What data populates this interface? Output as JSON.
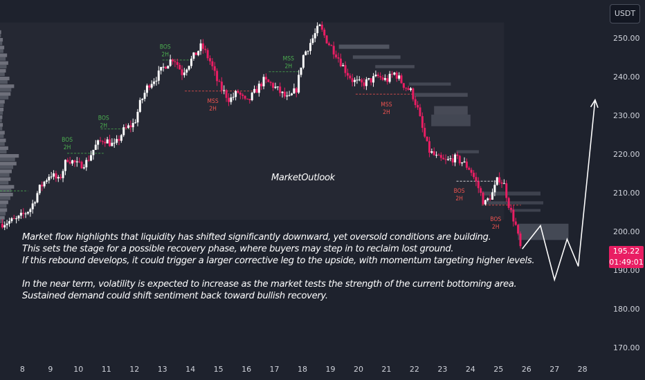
{
  "header": {
    "currency": "USDT"
  },
  "price_tag": {
    "last_price": "195.22",
    "countdown": "01:49:01"
  },
  "watermark": "MarketOutlook",
  "commentary": [
    "Market flow highlights that liquidity has shifted significantly downward, yet oversold conditions are building.",
    "This sets the stage for a possible recovery phase, where buyers may step in to reclaim lost ground.",
    "If this rebound develops, it could trigger a larger corrective leg to the upside, with momentum targeting higher levels.",
    "",
    "In the near term, volatility is expected to increase as the market tests the strength of the current bottoming area.",
    "Sustained demand could shift sentiment back toward bullish recovery."
  ],
  "colors": {
    "background": "#1e222d",
    "bull": "#ffffff",
    "bear": "#e91e63",
    "bos_label": "#4caf50",
    "mss_label": "#ef5350",
    "price_tag": "#e91e63"
  },
  "chart_data": {
    "type": "candlestick",
    "ylim": [
      165,
      255
    ],
    "yticks": [
      170,
      180,
      190,
      200,
      210,
      220,
      230,
      240,
      250
    ],
    "ytick_labels": [
      "170.00",
      "180.00",
      "190.00",
      "200.00",
      "210.00",
      "220.00",
      "230.00",
      "240.00",
      "250.00"
    ],
    "xlim": [
      7.2,
      28.7
    ],
    "xticks": [
      8,
      9,
      10,
      11,
      12,
      13,
      14,
      15,
      16,
      17,
      18,
      19,
      20,
      21,
      22,
      23,
      24,
      25,
      26,
      27,
      28
    ],
    "xtick_labels": [
      "8",
      "9",
      "10",
      "11",
      "12",
      "13",
      "14",
      "15",
      "16",
      "17",
      "18",
      "19",
      "20",
      "21",
      "22",
      "23",
      "24",
      "25",
      "26",
      "27",
      "28"
    ],
    "last_price": 195.22,
    "price_path": [
      [
        7.2,
        202
      ],
      [
        7.8,
        203
      ],
      [
        8.3,
        206
      ],
      [
        8.6,
        211
      ],
      [
        9.0,
        215
      ],
      [
        9.3,
        213
      ],
      [
        9.6,
        219
      ],
      [
        10.0,
        217
      ],
      [
        10.3,
        218
      ],
      [
        10.6,
        222
      ],
      [
        10.9,
        224
      ],
      [
        11.3,
        222
      ],
      [
        11.6,
        226
      ],
      [
        12.0,
        228
      ],
      [
        12.2,
        233
      ],
      [
        12.5,
        238
      ],
      [
        12.8,
        240
      ],
      [
        13.1,
        243
      ],
      [
        13.4,
        245
      ],
      [
        13.7,
        241
      ],
      [
        14.0,
        244
      ],
      [
        14.4,
        248
      ],
      [
        14.7,
        244
      ],
      [
        15.0,
        238
      ],
      [
        15.4,
        234
      ],
      [
        15.7,
        236
      ],
      [
        16.0,
        233
      ],
      [
        16.3,
        236
      ],
      [
        16.6,
        239
      ],
      [
        16.9,
        238
      ],
      [
        17.2,
        236
      ],
      [
        17.5,
        234
      ],
      [
        17.8,
        237
      ],
      [
        18.0,
        245
      ],
      [
        18.3,
        249
      ],
      [
        18.6,
        253
      ],
      [
        18.9,
        249
      ],
      [
        19.2,
        246
      ],
      [
        19.5,
        242
      ],
      [
        19.8,
        239
      ],
      [
        20.1,
        238
      ],
      [
        20.4,
        239
      ],
      [
        20.7,
        240
      ],
      [
        21.0,
        239
      ],
      [
        21.3,
        241
      ],
      [
        21.6,
        238
      ],
      [
        21.9,
        236
      ],
      [
        22.1,
        232
      ],
      [
        22.3,
        226
      ],
      [
        22.5,
        221
      ],
      [
        22.8,
        219
      ],
      [
        23.1,
        218
      ],
      [
        23.4,
        219
      ],
      [
        23.7,
        218
      ],
      [
        24.0,
        216
      ],
      [
        24.3,
        211
      ],
      [
        24.5,
        207
      ],
      [
        24.8,
        210
      ],
      [
        25.0,
        214
      ],
      [
        25.2,
        212
      ],
      [
        25.4,
        206
      ],
      [
        25.6,
        202
      ],
      [
        25.8,
        195.22
      ]
    ],
    "zones": [
      {
        "x": [
          7.2,
          25.2
        ],
        "y": [
          203,
          254
        ],
        "color": "rgba(255,255,255,0.03)"
      },
      {
        "x": [
          19.3,
          21.1
        ],
        "y": [
          247.2,
          248.3
        ],
        "color": "rgba(160,165,180,0.35)"
      },
      {
        "x": [
          19.8,
          21.5
        ],
        "y": [
          244.6,
          245.5
        ],
        "color": "rgba(160,165,180,0.3)"
      },
      {
        "x": [
          20.6,
          22.0
        ],
        "y": [
          242.2,
          243.0
        ],
        "color": "rgba(160,165,180,0.28)"
      },
      {
        "x": [
          21.8,
          23.3
        ],
        "y": [
          237.7,
          238.5
        ],
        "color": "rgba(160,165,180,0.25)"
      },
      {
        "x": [
          22.0,
          23.9
        ],
        "y": [
          234.8,
          235.8
        ],
        "color": "rgba(160,165,180,0.28)"
      },
      {
        "x": [
          22.7,
          23.9
        ],
        "y": [
          230.2,
          232.4
        ],
        "color": "rgba(160,165,180,0.28)"
      },
      {
        "x": [
          22.6,
          24.0
        ],
        "y": [
          227.2,
          230.2
        ],
        "color": "rgba(160,165,180,0.25)"
      },
      {
        "x": [
          23.5,
          24.3
        ],
        "y": [
          220.2,
          221.0
        ],
        "color": "rgba(160,165,180,0.25)"
      },
      {
        "x": [
          24.4,
          26.5
        ],
        "y": [
          209.3,
          210.3
        ],
        "color": "rgba(160,165,180,0.25)"
      },
      {
        "x": [
          24.6,
          26.6
        ],
        "y": [
          207.0,
          207.8
        ],
        "color": "rgba(160,165,180,0.25)"
      },
      {
        "x": [
          25.4,
          26.5
        ],
        "y": [
          205.1,
          205.8
        ],
        "color": "rgba(160,165,180,0.25)"
      },
      {
        "x": [
          25.7,
          27.5
        ],
        "y": [
          197.8,
          202.0
        ],
        "color": "rgba(160,165,180,0.3)"
      }
    ],
    "levels": [
      {
        "x": [
          7.2,
          8.2
        ],
        "y": 210.5,
        "color": "#4caf50"
      },
      {
        "x": [
          9.6,
          10.9
        ],
        "y": 220.2,
        "color": "#4caf50"
      },
      {
        "x": [
          10.8,
          12.0
        ],
        "y": 226.5,
        "color": "#4caf50"
      },
      {
        "x": [
          13.0,
          14.1
        ],
        "y": 244.3,
        "color": "#4caf50"
      },
      {
        "x": [
          13.8,
          16.3
        ],
        "y": 236.3,
        "color": "#ef5350"
      },
      {
        "x": [
          16.8,
          18.0
        ],
        "y": 241.3,
        "color": "#4caf50"
      },
      {
        "x": [
          19.9,
          22.0
        ],
        "y": 235.5,
        "color": "#ef5350"
      },
      {
        "x": [
          23.5,
          24.9
        ],
        "y": 213.0,
        "color": "#ffffff"
      },
      {
        "x": [
          24.4,
          25.8
        ],
        "y": 206.8,
        "color": "#ef5350"
      }
    ],
    "structure_labels": [
      {
        "text": [
          "BOS",
          "2H"
        ],
        "x": 9.6,
        "y": 223.2,
        "color": "#4caf50"
      },
      {
        "text": [
          "BOS",
          "2H"
        ],
        "x": 10.9,
        "y": 228.8,
        "color": "#4caf50"
      },
      {
        "text": [
          "BOS",
          "2H"
        ],
        "x": 13.1,
        "y": 247.2,
        "color": "#4caf50"
      },
      {
        "text": [
          "MSS",
          "2H"
        ],
        "x": 14.8,
        "y": 233.2,
        "color": "#ef5350"
      },
      {
        "text": [
          "MSS",
          "2H"
        ],
        "x": 17.5,
        "y": 244.2,
        "color": "#4caf50"
      },
      {
        "text": [
          "MSS",
          "2H"
        ],
        "x": 21.0,
        "y": 232.3,
        "color": "#ef5350"
      },
      {
        "text": [
          "BOS",
          "2H"
        ],
        "x": 23.6,
        "y": 210.0,
        "color": "#ef5350"
      },
      {
        "text": [
          "BOS",
          "2H"
        ],
        "x": 24.9,
        "y": 202.7,
        "color": "#ef5350"
      }
    ],
    "projection": [
      [
        25.85,
        195.5
      ],
      [
        26.5,
        201.5
      ],
      [
        27.0,
        187.5
      ],
      [
        27.45,
        198
      ],
      [
        27.85,
        191
      ],
      [
        28.45,
        234
      ]
    ],
    "volume_profile": [
      [
        251,
        0.05
      ],
      [
        249,
        0.12
      ],
      [
        247,
        0.18
      ],
      [
        245,
        0.3
      ],
      [
        243,
        0.35
      ],
      [
        241,
        0.25
      ],
      [
        239,
        0.4
      ],
      [
        237,
        0.6
      ],
      [
        235,
        0.45
      ],
      [
        233,
        0.2
      ],
      [
        231,
        0.15
      ],
      [
        229,
        0.1
      ],
      [
        227,
        0.12
      ],
      [
        225,
        0.2
      ],
      [
        223,
        0.25
      ],
      [
        221,
        0.35
      ],
      [
        219,
        0.8
      ],
      [
        217,
        0.7
      ],
      [
        215,
        0.5
      ],
      [
        213,
        0.45
      ],
      [
        211,
        0.6
      ],
      [
        209,
        0.55
      ],
      [
        207,
        0.35
      ],
      [
        205,
        0.3
      ],
      [
        203,
        0.2
      ]
    ]
  }
}
